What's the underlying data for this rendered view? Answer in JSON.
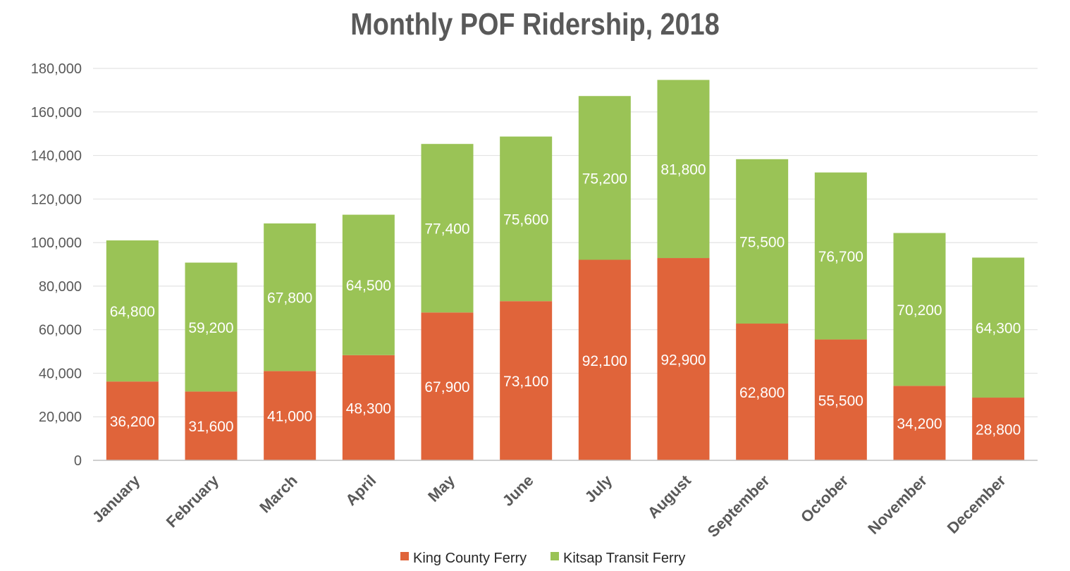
{
  "chart_data": {
    "type": "bar",
    "stacked": true,
    "title": "Monthly POF Ridership, 2018",
    "xlabel": "",
    "ylabel": "",
    "ylim": [
      0,
      180000
    ],
    "yticks": [
      0,
      20000,
      40000,
      60000,
      80000,
      100000,
      120000,
      140000,
      160000,
      180000
    ],
    "ytick_labels": [
      "0",
      "20,000",
      "40,000",
      "60,000",
      "80,000",
      "100,000",
      "120,000",
      "140,000",
      "160,000",
      "180,000"
    ],
    "grid": true,
    "legend_position": "bottom",
    "categories": [
      "January",
      "February",
      "March",
      "April",
      "May",
      "June",
      "July",
      "August",
      "September",
      "October",
      "November",
      "December"
    ],
    "series": [
      {
        "name": "King County Ferry",
        "color": "#E0643A",
        "values": [
          36200,
          31600,
          41000,
          48300,
          67900,
          73100,
          92100,
          92900,
          62800,
          55500,
          34200,
          28800
        ],
        "labels": [
          "36,200",
          "31,600",
          "41,000",
          "48,300",
          "67,900",
          "73,100",
          "92,100",
          "92,900",
          "62,800",
          "55,500",
          "34,200",
          "28,800"
        ]
      },
      {
        "name": "Kitsap Transit Ferry",
        "color": "#9AC356",
        "values": [
          64800,
          59200,
          67800,
          64500,
          77400,
          75600,
          75200,
          81800,
          75500,
          76700,
          70200,
          64300
        ],
        "labels": [
          "64,800",
          "59,200",
          "67,800",
          "64,500",
          "77,400",
          "75,600",
          "75,200",
          "81,800",
          "75,500",
          "76,700",
          "70,200",
          "64,300"
        ]
      }
    ]
  }
}
